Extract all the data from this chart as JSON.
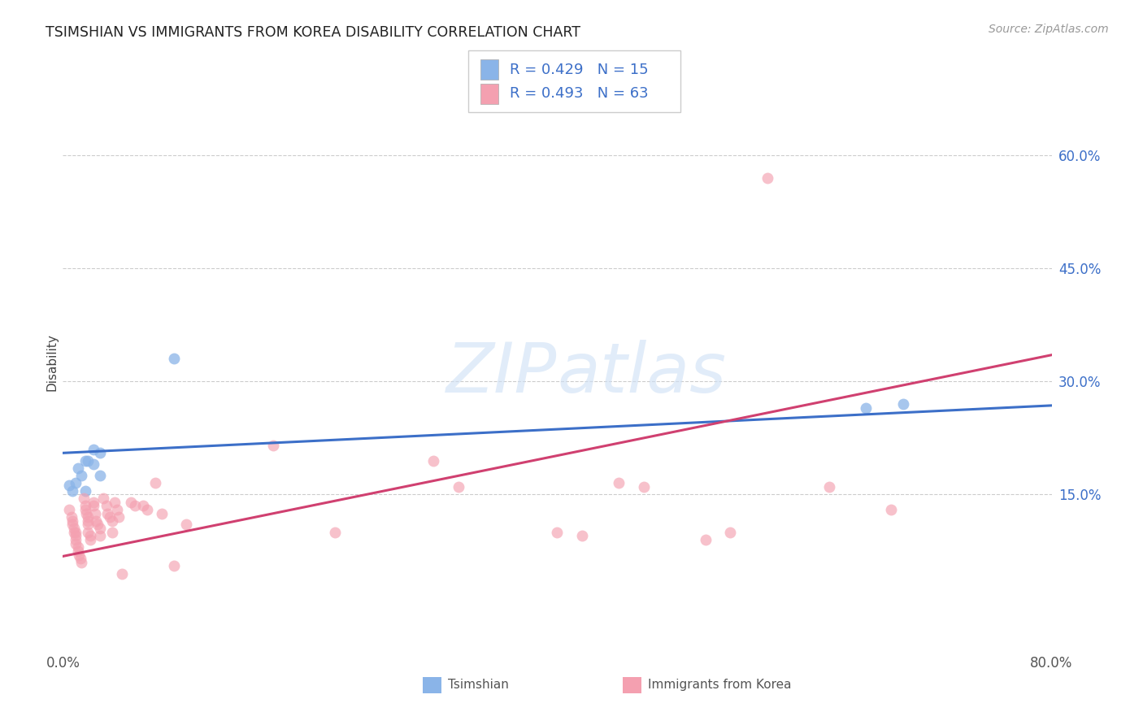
{
  "title": "TSIMSHIAN VS IMMIGRANTS FROM KOREA DISABILITY CORRELATION CHART",
  "source": "Source: ZipAtlas.com",
  "ylabel": "Disability",
  "ylabel_ticks_vals": [
    0.15,
    0.3,
    0.45,
    0.6
  ],
  "ylabel_ticks_labels": [
    "15.0%",
    "30.0%",
    "45.0%",
    "60.0%"
  ],
  "xlim": [
    0.0,
    0.8
  ],
  "ylim": [
    -0.05,
    0.7
  ],
  "legend_r1": "R = 0.429   N = 15",
  "legend_r2": "R = 0.493   N = 63",
  "color_blue": "#8ab4e8",
  "color_pink": "#f4a0b0",
  "color_blue_line": "#3c6fc8",
  "color_pink_line": "#d04070",
  "tsimshian_x": [
    0.005,
    0.008,
    0.01,
    0.012,
    0.015,
    0.018,
    0.018,
    0.02,
    0.025,
    0.025,
    0.03,
    0.03,
    0.65,
    0.68,
    0.09
  ],
  "tsimshian_y": [
    0.162,
    0.155,
    0.165,
    0.185,
    0.175,
    0.195,
    0.155,
    0.195,
    0.21,
    0.19,
    0.205,
    0.175,
    0.265,
    0.27,
    0.33
  ],
  "korea_x": [
    0.005,
    0.007,
    0.008,
    0.008,
    0.009,
    0.009,
    0.01,
    0.01,
    0.01,
    0.01,
    0.012,
    0.012,
    0.013,
    0.014,
    0.015,
    0.017,
    0.018,
    0.018,
    0.019,
    0.02,
    0.02,
    0.02,
    0.02,
    0.022,
    0.022,
    0.025,
    0.025,
    0.026,
    0.027,
    0.028,
    0.03,
    0.03,
    0.033,
    0.035,
    0.036,
    0.038,
    0.04,
    0.04,
    0.042,
    0.044,
    0.045,
    0.048,
    0.055,
    0.058,
    0.065,
    0.068,
    0.075,
    0.08,
    0.09,
    0.1,
    0.17,
    0.22,
    0.3,
    0.32,
    0.4,
    0.42,
    0.45,
    0.47,
    0.52,
    0.54,
    0.57,
    0.62,
    0.67
  ],
  "korea_y": [
    0.13,
    0.12,
    0.115,
    0.11,
    0.105,
    0.1,
    0.1,
    0.095,
    0.09,
    0.085,
    0.08,
    0.075,
    0.07,
    0.065,
    0.06,
    0.145,
    0.135,
    0.13,
    0.125,
    0.12,
    0.115,
    0.11,
    0.1,
    0.095,
    0.09,
    0.14,
    0.135,
    0.125,
    0.115,
    0.11,
    0.105,
    0.095,
    0.145,
    0.135,
    0.125,
    0.12,
    0.115,
    0.1,
    0.14,
    0.13,
    0.12,
    0.045,
    0.14,
    0.135,
    0.135,
    0.13,
    0.165,
    0.125,
    0.055,
    0.11,
    0.215,
    0.1,
    0.195,
    0.16,
    0.1,
    0.095,
    0.165,
    0.16,
    0.09,
    0.1,
    0.57,
    0.16,
    0.13
  ],
  "blue_line_x": [
    0.0,
    0.8
  ],
  "blue_line_y": [
    0.205,
    0.268
  ],
  "pink_line_x": [
    0.0,
    0.8
  ],
  "pink_line_y": [
    0.068,
    0.335
  ]
}
